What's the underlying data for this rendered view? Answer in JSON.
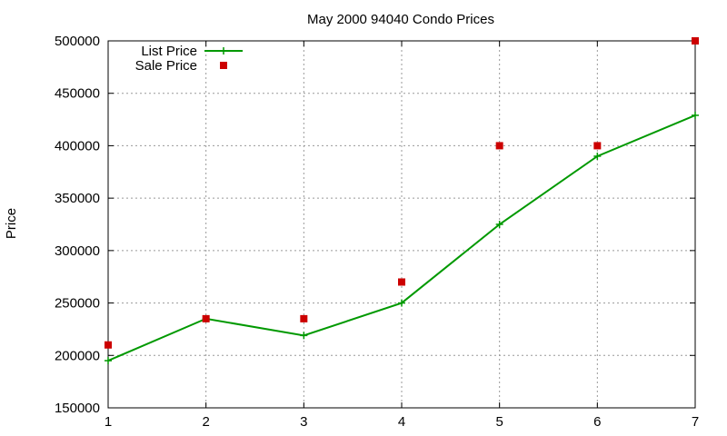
{
  "chart_data": {
    "type": "line",
    "title": "May 2000 94040 Condo Prices",
    "xlabel": "",
    "ylabel": "Price",
    "x": [
      1,
      2,
      3,
      4,
      5,
      6,
      7
    ],
    "xlim": [
      1,
      7
    ],
    "ylim": [
      150000,
      500000
    ],
    "xticks": [
      "1",
      "2",
      "3",
      "4",
      "5",
      "6",
      "7"
    ],
    "yticks": [
      "150000",
      "200000",
      "250000",
      "300000",
      "350000",
      "400000",
      "450000",
      "500000"
    ],
    "grid": true,
    "legend_position": "top-left",
    "series": [
      {
        "name": "List Price",
        "style": "line-with-plus-markers",
        "color": "#009900",
        "values": [
          195000,
          235000,
          219000,
          250000,
          325000,
          390000,
          429000
        ]
      },
      {
        "name": "Sale Price",
        "style": "square-markers",
        "color": "#cc0000",
        "values": [
          210000,
          235000,
          235000,
          270000,
          400000,
          400000,
          500000
        ]
      }
    ]
  }
}
